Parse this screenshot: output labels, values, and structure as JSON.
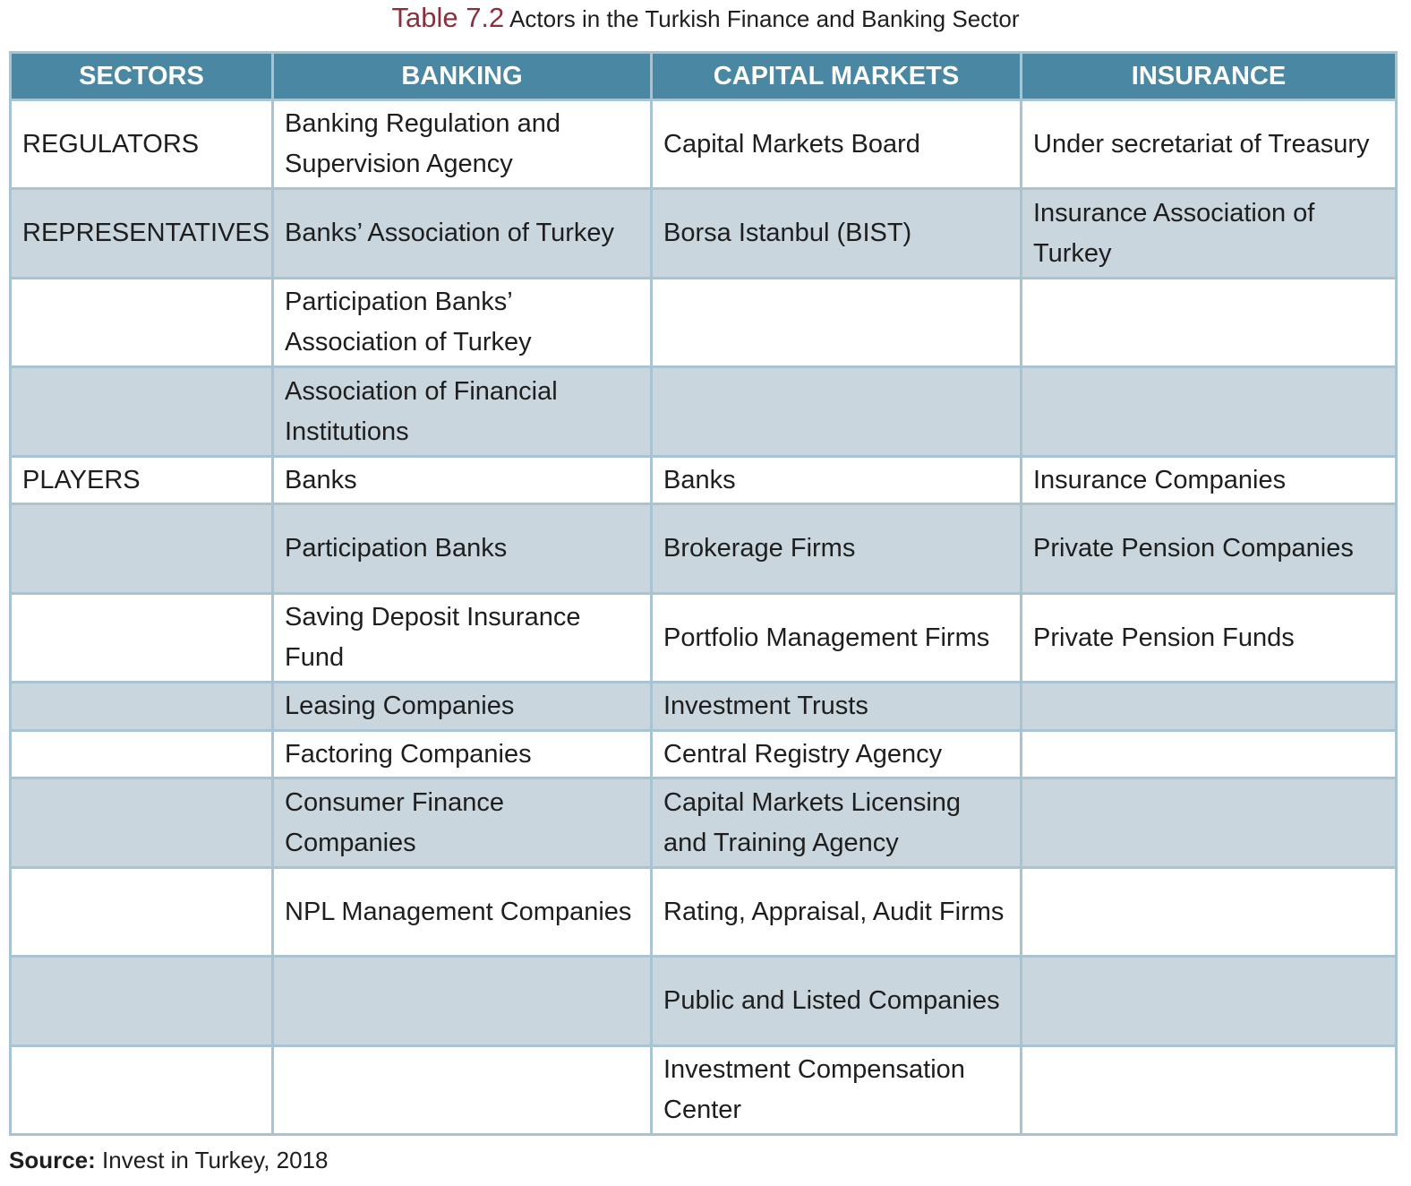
{
  "title": {
    "number": "Table 7.2",
    "text": "Actors in the Turkish Finance and Banking Sector"
  },
  "table": {
    "headers": [
      "SECTORS",
      "BANKING",
      "CAPITAL MARKETS",
      "INSURANCE"
    ],
    "rows": [
      [
        "REGULATORS",
        "Banking Regulation and Supervision Agency",
        "Capital Markets Board",
        "Under secretariat of Treasury"
      ],
      [
        "REPRESENTATIVES",
        "Banks’ Association of Turkey",
        "Borsa Istanbul (BIST)",
        "Insurance Association of Turkey"
      ],
      [
        "",
        "Participation Banks’ Association of Turkey",
        "",
        ""
      ],
      [
        "",
        "Association of Financial Institutions",
        "",
        ""
      ],
      [
        "PLAYERS",
        "Banks",
        "Banks",
        "Insurance Companies"
      ],
      [
        "",
        "Participation Banks",
        "Brokerage Firms",
        "Private Pension Companies"
      ],
      [
        "",
        "Saving Deposit Insurance Fund",
        "Portfolio Management Firms",
        "Private Pension Funds"
      ],
      [
        "",
        "Leasing Companies",
        "Investment Trusts",
        ""
      ],
      [
        "",
        "Factoring Companies",
        "Central Registry Agency",
        ""
      ],
      [
        "",
        "Consumer Finance Companies",
        "Capital Markets Licensing and Training Agency",
        ""
      ],
      [
        "",
        "NPL Management Companies",
        "Rating, Appraisal, Audit Firms",
        ""
      ],
      [
        "",
        "",
        "Public and Listed Companies",
        ""
      ],
      [
        "",
        "",
        "Investment Compensation Center",
        ""
      ]
    ]
  },
  "source": {
    "label": "Source:",
    "text": "Invest in Turkey, 2018"
  },
  "colors": {
    "header": "#4a87a3",
    "alt_row": "#c9d6dd",
    "border": "#a8c4d2",
    "title_number": "#8b2f3b"
  }
}
